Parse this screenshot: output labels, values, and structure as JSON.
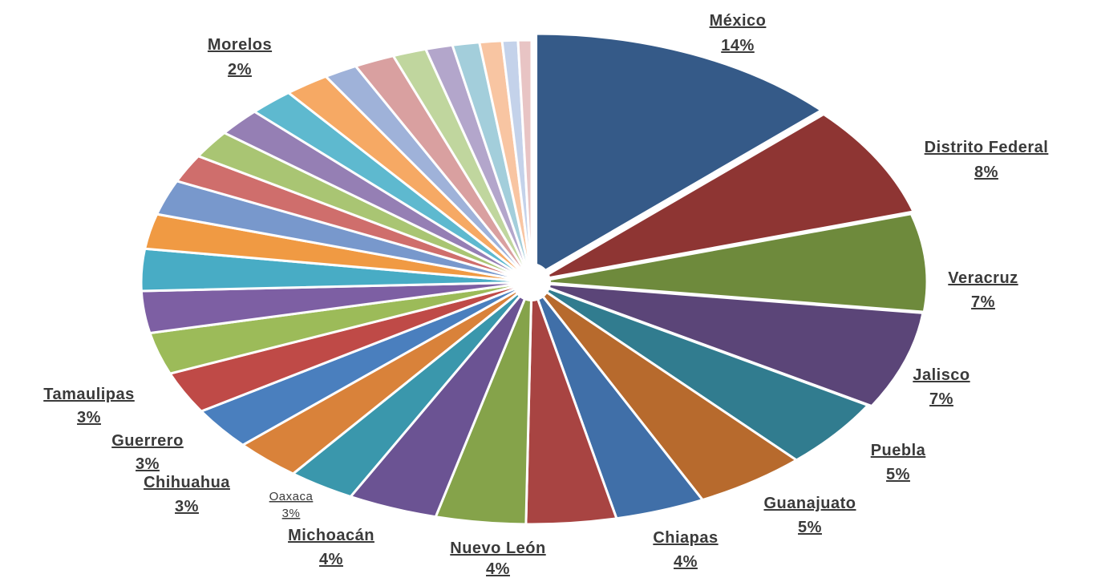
{
  "chart_data": {
    "type": "pie",
    "title": "",
    "slices": [
      {
        "label": "México",
        "value": 14,
        "percent_label": "14%",
        "color": "#355A88"
      },
      {
        "label": "Distrito Federal",
        "value": 8,
        "percent_label": "8%",
        "color": "#8E3533"
      },
      {
        "label": "Veracruz",
        "value": 7,
        "percent_label": "7%",
        "color": "#6E8A3C"
      },
      {
        "label": "Jalisco",
        "value": 7,
        "percent_label": "7%",
        "color": "#5B4578"
      },
      {
        "label": "Puebla",
        "value": 5,
        "percent_label": "5%",
        "color": "#317C8F"
      },
      {
        "label": "Guanajuato",
        "value": 5,
        "percent_label": "5%",
        "color": "#B76A2D"
      },
      {
        "label": "Chiapas",
        "value": 4,
        "percent_label": "4%",
        "color": "#406FA8"
      },
      {
        "label": "Nuevo León",
        "value": 4,
        "percent_label": "4%",
        "color": "#A84442"
      },
      {
        "label": "",
        "value": 4,
        "percent_label": "",
        "color": "#85A34A"
      },
      {
        "label": "Michoacán",
        "value": 4,
        "percent_label": "4%",
        "color": "#6B5393"
      },
      {
        "label": "Oaxaca",
        "value": 3,
        "percent_label": "3%",
        "color": "#3A97AC"
      },
      {
        "label": "Chihuahua",
        "value": 3,
        "percent_label": "3%",
        "color": "#D9823A"
      },
      {
        "label": "Guerrero",
        "value": 3,
        "percent_label": "3%",
        "color": "#4A7FBE"
      },
      {
        "label": "Tamaulipas",
        "value": 3,
        "percent_label": "3%",
        "color": "#BF4A47"
      },
      {
        "label": "",
        "value": 3,
        "percent_label": "",
        "color": "#9CBB59"
      },
      {
        "label": "",
        "value": 3,
        "percent_label": "",
        "color": "#7D5FA3"
      },
      {
        "label": "",
        "value": 3,
        "percent_label": "",
        "color": "#48ACC5"
      },
      {
        "label": "",
        "value": 2.5,
        "percent_label": "",
        "color": "#F09A43"
      },
      {
        "label": "",
        "value": 2.5,
        "percent_label": "",
        "color": "#7898CC"
      },
      {
        "label": "",
        "value": 2,
        "percent_label": "",
        "color": "#CF6E6C"
      },
      {
        "label": "",
        "value": 2,
        "percent_label": "",
        "color": "#A9C573"
      },
      {
        "label": "",
        "value": 2,
        "percent_label": "",
        "color": "#957FB4"
      },
      {
        "label": "",
        "value": 2,
        "percent_label": "",
        "color": "#5EB9CF"
      },
      {
        "label": "Morelos",
        "value": 2,
        "percent_label": "2%",
        "color": "#F6A964"
      },
      {
        "label": "",
        "value": 1.5,
        "percent_label": "",
        "color": "#9FB2D9"
      },
      {
        "label": "",
        "value": 1.8,
        "percent_label": "",
        "color": "#D9A0A0"
      },
      {
        "label": "",
        "value": 1.5,
        "percent_label": "",
        "color": "#C0D69E"
      },
      {
        "label": "",
        "value": 1.2,
        "percent_label": "",
        "color": "#B3A6CB"
      },
      {
        "label": "",
        "value": 1.2,
        "percent_label": "",
        "color": "#A3CEDB"
      },
      {
        "label": "",
        "value": 1,
        "percent_label": "",
        "color": "#F8C5A2"
      },
      {
        "label": "",
        "value": 0.7,
        "percent_label": "",
        "color": "#C4D2EA"
      },
      {
        "label": "",
        "value": 0.6,
        "percent_label": "",
        "color": "#E8C4C4"
      }
    ]
  }
}
